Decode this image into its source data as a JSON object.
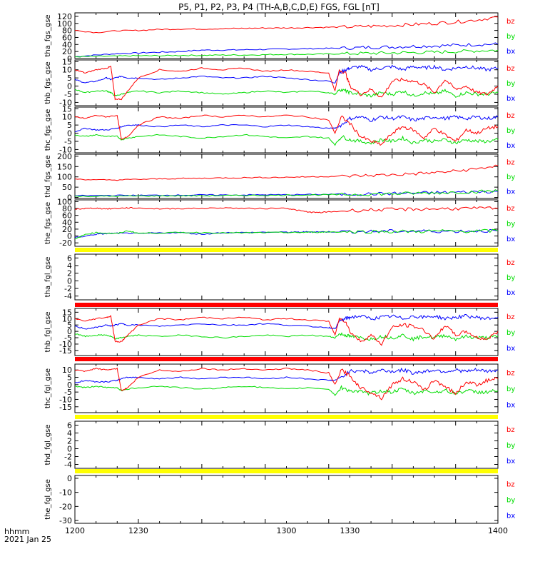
{
  "title": "P5, P1, P2, P3, P4 (TH-A,B,C,D,E) FGS, FGL [nT]",
  "time_axis": {
    "label": "hhmm",
    "date": "2021 Jan 25",
    "range": [
      1200,
      1400
    ],
    "tick_labels": [
      "1200",
      "1230",
      "1300",
      "1330",
      "1400"
    ]
  },
  "colors": {
    "bx": "#0000ff",
    "by": "#00dd00",
    "bz": "#ff0000",
    "bar_yellow": "#ffff00",
    "bar_red": "#ff0000",
    "frame": "#000000"
  },
  "chart_data": [
    {
      "type": "line",
      "ylabel": "tha_fgs_gse",
      "ylim": [
        0,
        130
      ],
      "ytick_labels": [
        "0",
        "20",
        "40",
        "60",
        "80",
        "100",
        "120"
      ],
      "legend": [
        "bz",
        "by",
        "bx"
      ],
      "x": [
        1200,
        1210,
        1220,
        1230,
        1240,
        1250,
        1260,
        1270,
        1280,
        1290,
        1300,
        1310,
        1320,
        1330,
        1340,
        1350,
        1360,
        1370,
        1380,
        1390,
        1400
      ],
      "series": [
        {
          "name": "bz",
          "values": [
            80,
            74,
            79,
            80,
            83,
            84,
            84,
            85,
            86,
            87,
            87,
            88,
            89,
            90,
            92,
            94,
            97,
            100,
            104,
            110,
            118
          ]
        },
        {
          "name": "by",
          "values": [
            5,
            6,
            7,
            8,
            8,
            9,
            9,
            10,
            10,
            11,
            12,
            12,
            13,
            14,
            15,
            16,
            17,
            18,
            20,
            22,
            24
          ]
        },
        {
          "name": "bx",
          "values": [
            5,
            10,
            14,
            16,
            18,
            20,
            24,
            24,
            25,
            26,
            27,
            28,
            29,
            30,
            32,
            33,
            35,
            36,
            38,
            40,
            41
          ]
        }
      ]
    },
    {
      "type": "line",
      "ylabel": "thb_fgs_gse",
      "ylim": [
        -12,
        16
      ],
      "ytick_labels": [
        "-10",
        "-5",
        "0",
        "5",
        "10",
        "15"
      ],
      "legend": [
        "bz",
        "by",
        "bx"
      ],
      "x": [
        1200,
        1205,
        1210,
        1215,
        1217,
        1219,
        1222,
        1225,
        1230,
        1240,
        1250,
        1260,
        1270,
        1280,
        1290,
        1300,
        1310,
        1320,
        1323,
        1325,
        1328,
        1330,
        1335,
        1340,
        1345,
        1350,
        1355,
        1360,
        1365,
        1370,
        1375,
        1380,
        1385,
        1390,
        1395,
        1400
      ],
      "series": [
        {
          "name": "bz",
          "values": [
            10,
            8,
            10,
            11,
            12,
            -8,
            -8,
            -3,
            5,
            10,
            9,
            11,
            10,
            11,
            9,
            10,
            9,
            8,
            -3,
            10,
            8,
            0,
            -5,
            -2,
            -7,
            3,
            4,
            3,
            1,
            -4,
            4,
            -2,
            0,
            -4,
            -5,
            0
          ]
        },
        {
          "name": "by",
          "values": [
            -2,
            -4,
            -3,
            -3,
            -4,
            -6,
            -5,
            -4,
            -3,
            -4,
            -3,
            -4,
            -5,
            -4,
            -3,
            -4,
            -3,
            -4,
            -5,
            -2,
            -3,
            -4,
            -5,
            -6,
            -4,
            -5,
            -3,
            -6,
            -4,
            -5,
            -3,
            -6,
            -4,
            -5,
            -5,
            -4
          ]
        },
        {
          "name": "bx",
          "values": [
            4,
            2,
            3,
            5,
            4,
            5,
            6,
            5,
            5,
            4,
            5,
            6,
            5,
            5,
            6,
            5,
            4,
            3,
            2,
            8,
            10,
            11,
            12,
            10,
            11,
            12,
            10,
            12,
            11,
            12,
            10,
            11,
            12,
            11,
            10,
            11
          ]
        }
      ]
    },
    {
      "type": "line",
      "ylabel": "thc_fgs_gse",
      "ylim": [
        -12,
        16
      ],
      "ytick_labels": [
        "-10",
        "-5",
        "0",
        "5",
        "10",
        "15"
      ],
      "legend": [
        "bz",
        "by",
        "bx"
      ],
      "x": [
        1200,
        1205,
        1210,
        1215,
        1220,
        1222,
        1225,
        1230,
        1240,
        1250,
        1260,
        1270,
        1280,
        1290,
        1300,
        1310,
        1320,
        1323,
        1326,
        1330,
        1335,
        1340,
        1345,
        1350,
        1355,
        1360,
        1365,
        1370,
        1375,
        1380,
        1385,
        1390,
        1395,
        1400
      ],
      "series": [
        {
          "name": "bz",
          "values": [
            10,
            9,
            11,
            10,
            11,
            -4,
            -2,
            5,
            10,
            9,
            11,
            10,
            11,
            10,
            11,
            10,
            8,
            0,
            10,
            6,
            -2,
            -5,
            -7,
            0,
            4,
            2,
            -3,
            3,
            -1,
            -5,
            2,
            0,
            3,
            4
          ]
        },
        {
          "name": "by",
          "values": [
            -1,
            -2,
            -1,
            -2,
            -2,
            -4,
            -3,
            -2,
            -1,
            -2,
            -3,
            -2,
            -1,
            -2,
            -3,
            -2,
            -3,
            -7,
            -2,
            -4,
            -5,
            -6,
            -4,
            -5,
            -3,
            -6,
            -4,
            -5,
            -4,
            -6,
            -4,
            -5,
            -5,
            -4
          ]
        },
        {
          "name": "bx",
          "values": [
            1,
            3,
            2,
            2,
            3,
            4,
            5,
            5,
            4,
            5,
            4,
            5,
            5,
            4,
            5,
            4,
            3,
            3,
            5,
            9,
            10,
            8,
            10,
            9,
            10,
            8,
            9,
            10,
            9,
            10,
            9,
            10,
            9,
            10
          ]
        }
      ]
    },
    {
      "type": "line",
      "ylabel": "thd_fgs_gse",
      "ylim": [
        -5,
        210
      ],
      "ytick_labels": [
        "0",
        "50",
        "100",
        "150",
        "200"
      ],
      "legend": [
        "bz",
        "by",
        "bx"
      ],
      "x": [
        1200,
        1210,
        1220,
        1230,
        1240,
        1250,
        1260,
        1270,
        1280,
        1290,
        1300,
        1310,
        1320,
        1330,
        1340,
        1350,
        1360,
        1370,
        1380,
        1390,
        1400
      ],
      "series": [
        {
          "name": "bz",
          "values": [
            90,
            85,
            85,
            88,
            90,
            92,
            93,
            95,
            96,
            97,
            98,
            100,
            102,
            104,
            107,
            110,
            115,
            120,
            128,
            138,
            155
          ]
        },
        {
          "name": "by",
          "values": [
            5,
            6,
            6,
            7,
            7,
            8,
            8,
            9,
            10,
            10,
            11,
            12,
            13,
            14,
            16,
            18,
            20,
            22,
            25,
            28,
            32
          ]
        },
        {
          "name": "bx",
          "values": [
            8,
            9,
            10,
            10,
            11,
            11,
            12,
            12,
            12,
            13,
            13,
            14,
            15,
            16,
            17,
            19,
            21,
            23,
            25,
            27,
            30
          ]
        }
      ]
    },
    {
      "type": "line",
      "ylabel": "the_fgs_gse",
      "ylim": [
        -30,
        105
      ],
      "ytick_labels": [
        "-20",
        "0",
        "20",
        "40",
        "60",
        "80",
        "100"
      ],
      "legend": [
        "bz",
        "by",
        "bx"
      ],
      "x": [
        1200,
        1205,
        1210,
        1215,
        1220,
        1225,
        1230,
        1240,
        1250,
        1260,
        1270,
        1280,
        1290,
        1300,
        1305,
        1310,
        1315,
        1320,
        1330,
        1340,
        1350,
        1360,
        1370,
        1380,
        1390,
        1400
      ],
      "series": [
        {
          "name": "bz",
          "values": [
            78,
            80,
            81,
            79,
            80,
            82,
            81,
            79,
            80,
            80,
            82,
            80,
            80,
            81,
            75,
            70,
            68,
            70,
            74,
            76,
            77,
            78,
            79,
            80,
            80,
            81
          ]
        },
        {
          "name": "by",
          "values": [
            -10,
            5,
            10,
            8,
            7,
            15,
            8,
            9,
            10,
            10,
            9,
            9,
            10,
            10,
            10,
            11,
            11,
            12,
            12,
            13,
            13,
            13,
            14,
            14,
            14,
            15
          ]
        },
        {
          "name": "bx",
          "values": [
            -5,
            0,
            5,
            7,
            8,
            8,
            7,
            9,
            10,
            5,
            10,
            10,
            11,
            11,
            11,
            12,
            12,
            12,
            13,
            13,
            14,
            14,
            14,
            14,
            15,
            15
          ]
        }
      ]
    },
    {
      "type": "line",
      "ylabel": "tha_fgl_gse",
      "ylim": [
        -5,
        7
      ],
      "ytick_labels": [
        "-4",
        "-2",
        "0",
        "2",
        "4",
        "6"
      ],
      "legend": [
        "bz",
        "by",
        "bx"
      ],
      "status_bar_top": "yellow",
      "x": [],
      "series": []
    },
    {
      "type": "line",
      "ylabel": "thb_fgl_gse",
      "ylim": [
        -19,
        18
      ],
      "ytick_labels": [
        "-15",
        "-10",
        "-5",
        "0",
        "5",
        "10",
        "15"
      ],
      "legend": [
        "bz",
        "by",
        "bx"
      ],
      "status_bar_top": "red",
      "x": [
        1200,
        1205,
        1210,
        1215,
        1217,
        1219,
        1222,
        1225,
        1230,
        1240,
        1250,
        1260,
        1270,
        1280,
        1290,
        1300,
        1310,
        1320,
        1323,
        1325,
        1328,
        1330,
        1335,
        1340,
        1345,
        1350,
        1355,
        1360,
        1365,
        1370,
        1375,
        1380,
        1385,
        1390,
        1395,
        1400
      ],
      "series": [
        {
          "name": "bz",
          "values": [
            10,
            8,
            10,
            11,
            12,
            -8,
            -8,
            -3,
            5,
            10,
            9,
            11,
            10,
            11,
            9,
            10,
            9,
            8,
            -3,
            10,
            8,
            0,
            -8,
            -3,
            -10,
            3,
            5,
            4,
            1,
            -6,
            5,
            -3,
            0,
            -5,
            -6,
            0
          ]
        },
        {
          "name": "by",
          "values": [
            -2,
            -4,
            -3,
            -3,
            -4,
            -6,
            -5,
            -4,
            -3,
            -4,
            -3,
            -4,
            -5,
            -4,
            -3,
            -4,
            -3,
            -4,
            -5,
            -2,
            -3,
            -4,
            -5,
            -6,
            -4,
            -5,
            -3,
            -6,
            -4,
            -5,
            -3,
            -6,
            -4,
            -5,
            -5,
            -4
          ]
        },
        {
          "name": "bx",
          "values": [
            4,
            2,
            3,
            5,
            4,
            5,
            6,
            5,
            5,
            4,
            5,
            6,
            5,
            5,
            6,
            5,
            4,
            3,
            2,
            8,
            10,
            11,
            12,
            10,
            11,
            12,
            10,
            12,
            11,
            12,
            10,
            11,
            12,
            11,
            10,
            11
          ]
        }
      ]
    },
    {
      "type": "line",
      "ylabel": "thc_fgl_gse",
      "ylim": [
        -19,
        14
      ],
      "ytick_labels": [
        "-15",
        "-10",
        "-5",
        "0",
        "5",
        "10"
      ],
      "legend": [
        "bz",
        "by",
        "bx"
      ],
      "status_bar_top": "red",
      "x": [
        1200,
        1205,
        1210,
        1215,
        1220,
        1222,
        1225,
        1230,
        1240,
        1250,
        1260,
        1270,
        1280,
        1290,
        1300,
        1310,
        1320,
        1323,
        1326,
        1330,
        1335,
        1340,
        1345,
        1350,
        1355,
        1360,
        1365,
        1370,
        1375,
        1380,
        1385,
        1390,
        1395,
        1400
      ],
      "series": [
        {
          "name": "bz",
          "values": [
            10,
            9,
            11,
            10,
            11,
            -4,
            -2,
            5,
            10,
            9,
            11,
            10,
            11,
            10,
            11,
            10,
            8,
            0,
            10,
            6,
            -2,
            -5,
            -9,
            0,
            4,
            2,
            -4,
            3,
            -1,
            -6,
            2,
            0,
            3,
            4
          ]
        },
        {
          "name": "by",
          "values": [
            -1,
            -2,
            -1,
            -2,
            -2,
            -4,
            -3,
            -2,
            -1,
            -2,
            -3,
            -2,
            -1,
            -2,
            -3,
            -2,
            -3,
            -7,
            -2,
            -4,
            -5,
            -6,
            -4,
            -5,
            -3,
            -6,
            -4,
            -5,
            -4,
            -6,
            -4,
            -5,
            -5,
            -4
          ]
        },
        {
          "name": "bx",
          "values": [
            1,
            3,
            2,
            2,
            3,
            4,
            5,
            5,
            4,
            5,
            4,
            5,
            5,
            4,
            5,
            4,
            3,
            3,
            5,
            9,
            10,
            8,
            10,
            9,
            10,
            8,
            9,
            10,
            9,
            10,
            9,
            10,
            9,
            10
          ]
        }
      ]
    },
    {
      "type": "line",
      "ylabel": "thd_fgl_gse",
      "ylim": [
        -5,
        7
      ],
      "ytick_labels": [
        "-4",
        "-2",
        "0",
        "2",
        "4",
        "6"
      ],
      "legend": [
        "bz",
        "by",
        "bx"
      ],
      "status_bar_top": "yellow",
      "x": [],
      "series": []
    },
    {
      "type": "line",
      "ylabel": "the_fgl_gse",
      "ylim": [
        -32,
        2
      ],
      "ytick_labels": [
        "-30",
        "-20",
        "-10",
        "0"
      ],
      "legend": [
        "bz",
        "by",
        "bx"
      ],
      "status_bar_top": "yellow",
      "x": [],
      "series": []
    }
  ]
}
